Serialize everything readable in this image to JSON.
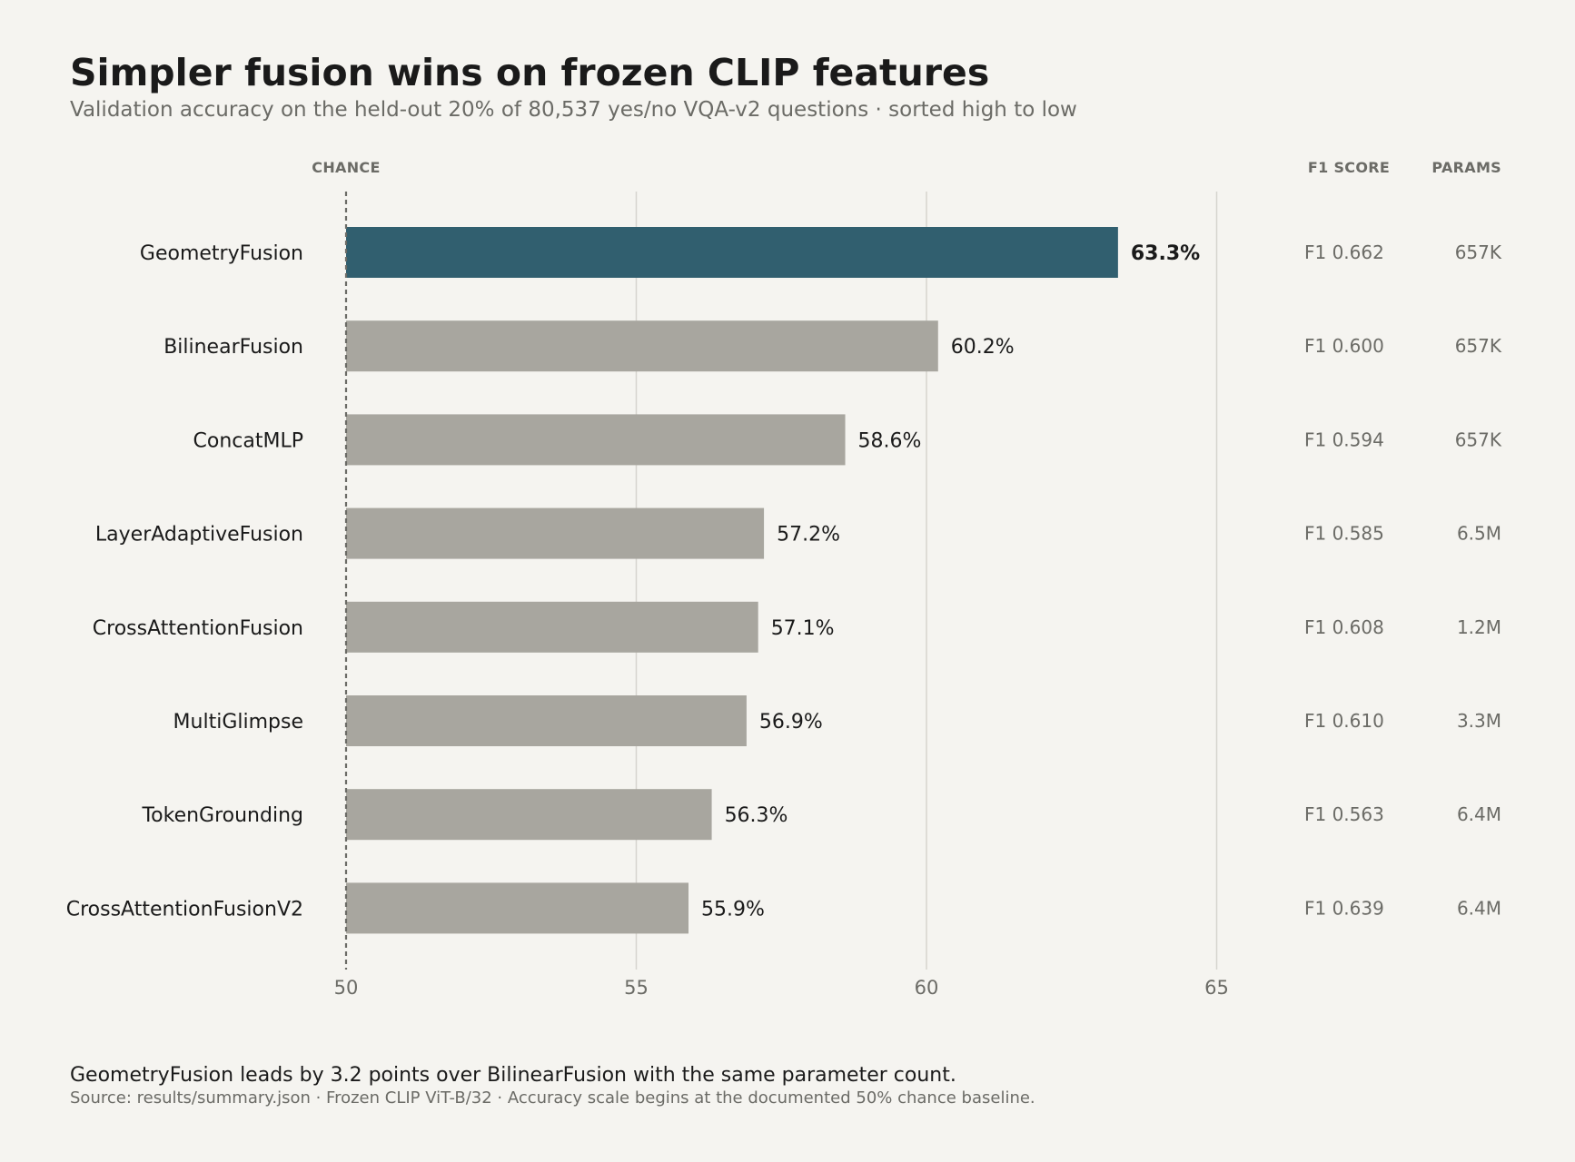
{
  "chart_data": {
    "type": "bar",
    "orientation": "horizontal",
    "title": "Simpler fusion wins on frozen CLIP features",
    "subtitle": "Validation accuracy on the held-out 20% of 80,537 yes/no VQA-v2 questions · sorted high to low",
    "categories": [
      "GeometryFusion",
      "BilinearFusion",
      "ConcatMLP",
      "LayerAdaptiveFusion",
      "CrossAttentionFusion",
      "MultiGlimpse",
      "TokenGrounding",
      "CrossAttentionFusionV2"
    ],
    "values": [
      63.3,
      60.2,
      58.6,
      57.2,
      57.1,
      56.9,
      56.3,
      55.9
    ],
    "value_labels": [
      "63.3%",
      "60.2%",
      "58.6%",
      "57.2%",
      "57.1%",
      "56.9%",
      "56.3%",
      "55.9%"
    ],
    "f1_labels": [
      "F1 0.662",
      "F1 0.600",
      "F1 0.594",
      "F1 0.585",
      "F1 0.608",
      "F1 0.610",
      "F1 0.563",
      "F1 0.639"
    ],
    "params": [
      "657K",
      "657K",
      "657K",
      "6.5M",
      "1.2M",
      "3.3M",
      "6.4M",
      "6.4M"
    ],
    "highlight_index": 0,
    "xlim": [
      50,
      65
    ],
    "xticks": [
      50,
      55,
      60,
      65
    ],
    "grid": true,
    "reference_line": {
      "value": 50,
      "label": "CHANCE"
    },
    "column_headers": {
      "f1": "F1 SCORE",
      "params": "PARAMS"
    },
    "colors": {
      "highlight": "#315f6f",
      "bar": "#a8a69f",
      "background": "#f5f4f0"
    }
  },
  "footer": {
    "note": "GeometryFusion leads by 3.2 points over BilinearFusion with the same parameter count.",
    "source": "Source: results/summary.json · Frozen CLIP ViT-B/32 · Accuracy scale begins at the documented 50% chance baseline."
  }
}
